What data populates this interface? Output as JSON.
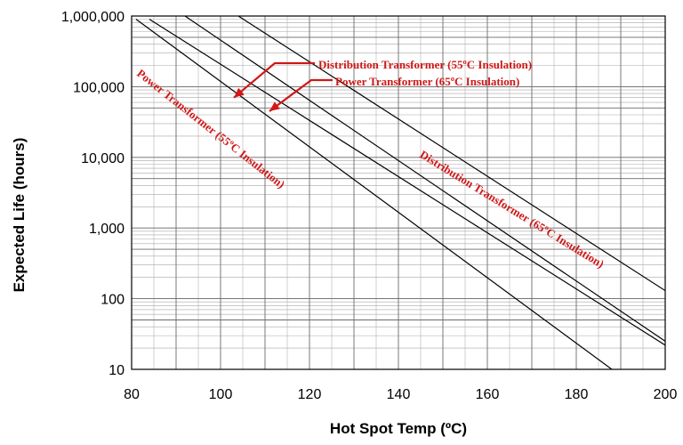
{
  "chart_data": {
    "type": "line",
    "xlabel": "Hot Spot Temp (ºC)",
    "ylabel": "Expected Life (hours)",
    "xlim": [
      80,
      200
    ],
    "ylim": [
      10,
      1000000
    ],
    "yscale": "log",
    "grid": true,
    "x_ticks": [
      80,
      100,
      120,
      140,
      160,
      180,
      200
    ],
    "x_tick_labels": [
      "80",
      "100",
      "120",
      "140",
      "160",
      "180",
      "200"
    ],
    "y_ticks": [
      10,
      100,
      1000,
      10000,
      100000,
      1000000
    ],
    "y_tick_labels": [
      "10",
      "100",
      "1,000",
      "10,000",
      "100,000",
      "1,000,000"
    ],
    "series": [
      {
        "name": "Power Transformer (55ºC Insulation)",
        "x": [
          81,
          188
        ],
        "y": [
          900000,
          10
        ]
      },
      {
        "name": "Distribution Transformer (55ºC Insulation)",
        "x": [
          84,
          200
        ],
        "y": [
          900000,
          22
        ]
      },
      {
        "name": "Power Transformer (65ºC Insulation)",
        "x": [
          92,
          200
        ],
        "y": [
          1000000,
          25
        ]
      },
      {
        "name": "Distribution Transformer (65ºC Insulation)",
        "x": [
          104,
          200
        ],
        "y": [
          1000000,
          130
        ]
      }
    ],
    "annotations": [
      {
        "text": "Distribution Transformer (55ºC Insulation)",
        "points_to": {
          "x": 103,
          "y": 70000
        }
      },
      {
        "text": "Power Transformer (65ºC Insulation)",
        "points_to": {
          "x": 111,
          "y": 45000
        }
      },
      {
        "text": "Power Transformer (55ºC Insulation)"
      },
      {
        "text": "Distribution Transformer (65ºC Insulation)"
      }
    ],
    "line_color": "#000000",
    "annotation_color": "#d01818"
  }
}
